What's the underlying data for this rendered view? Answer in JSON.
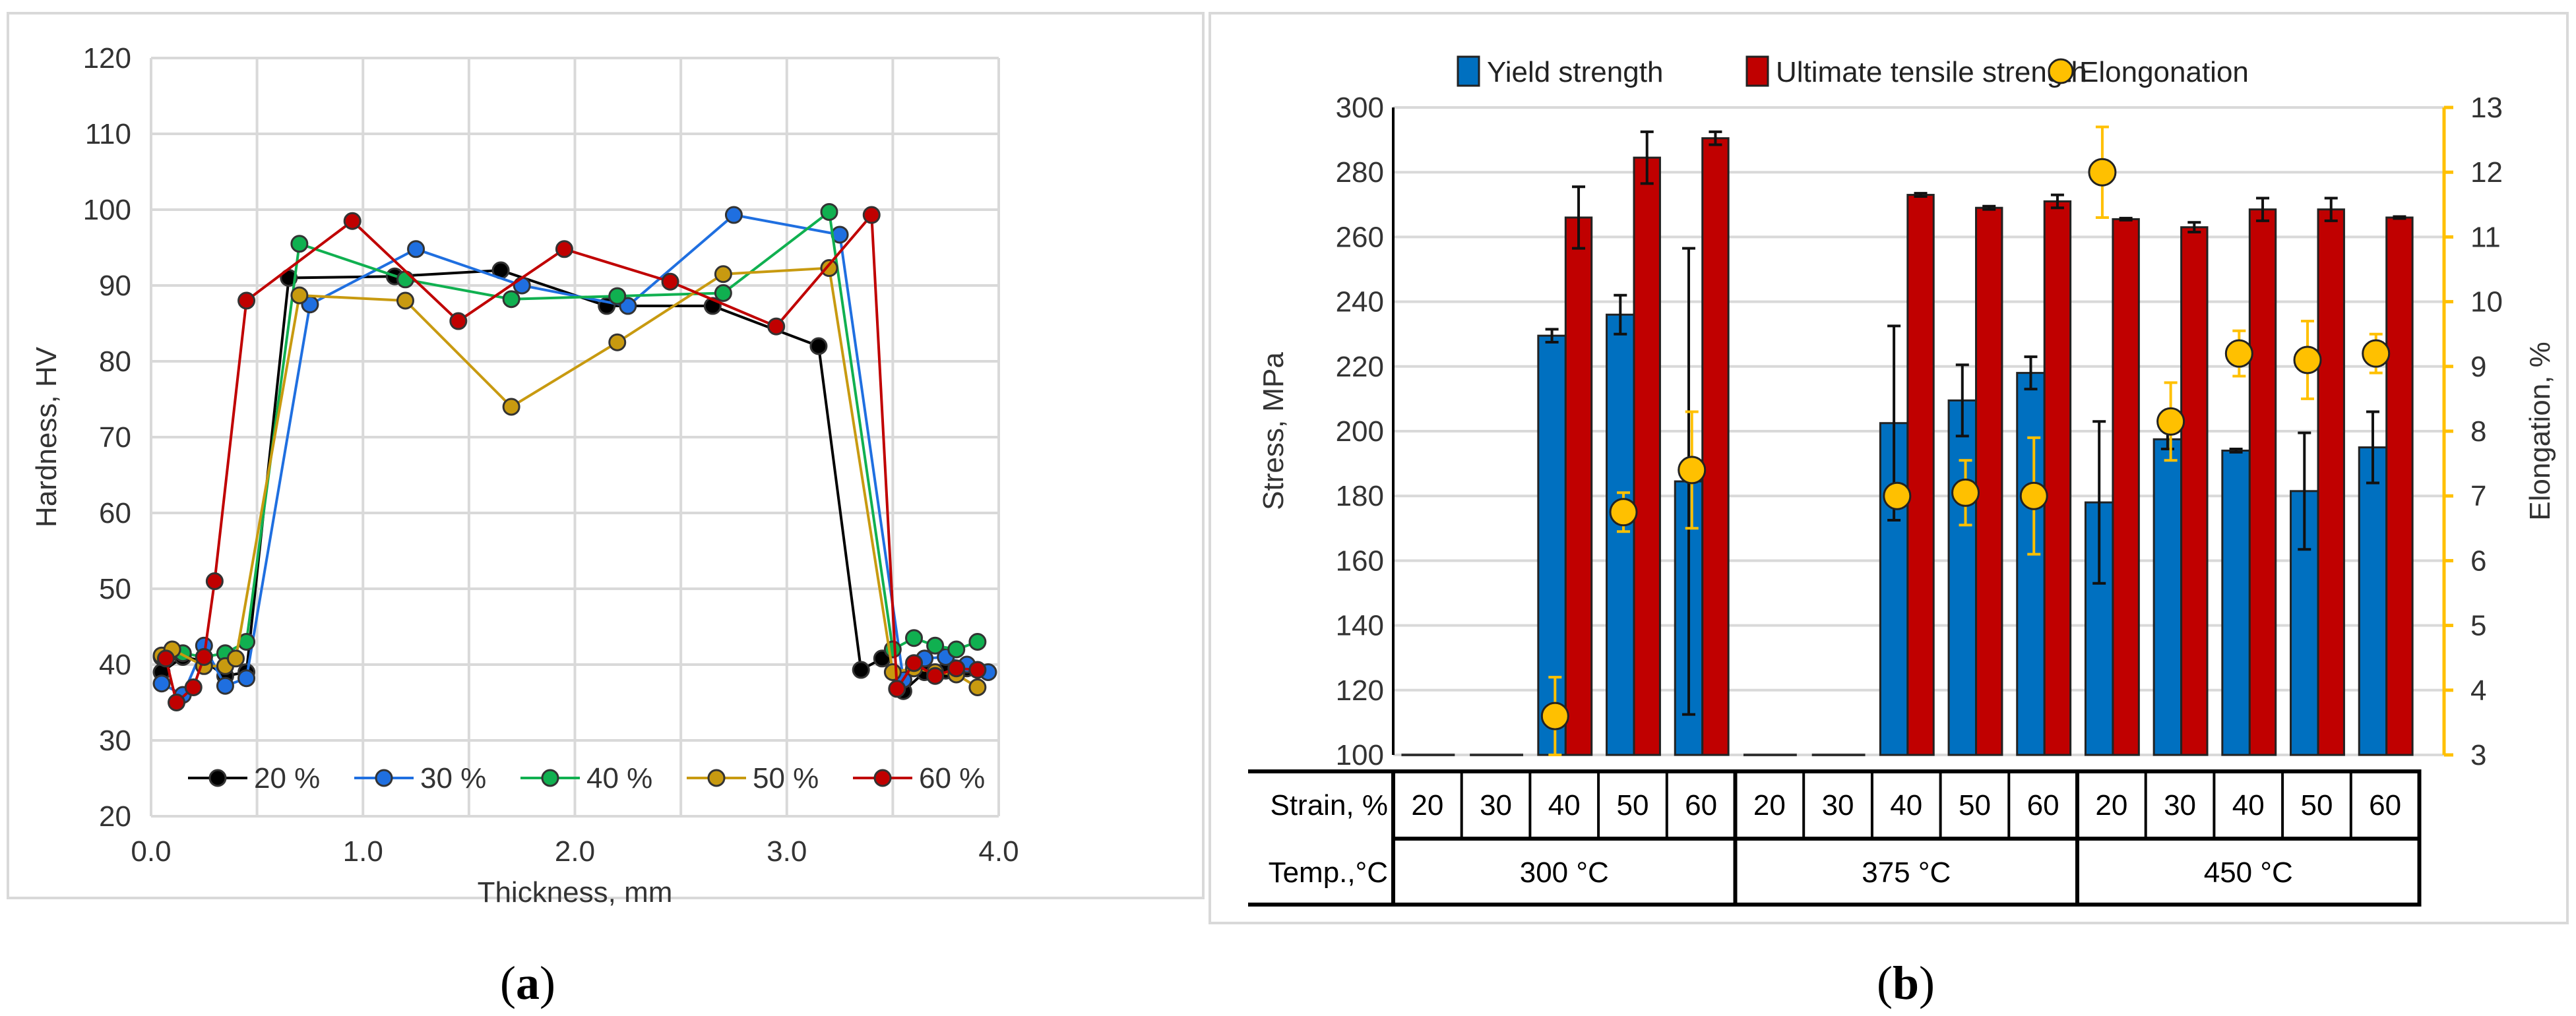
{
  "chart_data": [
    {
      "type": "line",
      "panel_label": "a",
      "xlabel": "Thickness, mm",
      "ylabel": "Hardness, HV",
      "xlim": [
        0,
        4
      ],
      "ylim": [
        20,
        120
      ],
      "xticks": [
        "0.0",
        "1.0",
        "2.0",
        "3.0",
        "4.0"
      ],
      "yticks": [
        "20",
        "30",
        "40",
        "50",
        "60",
        "70",
        "80",
        "90",
        "100",
        "110",
        "120"
      ],
      "grid": true,
      "legend": "bottom-inside",
      "series": [
        {
          "name": "20 %",
          "color": "#000000",
          "x": [
            0.05,
            0.15,
            0.25,
            0.35,
            0.45,
            0.65,
            1.15,
            1.65,
            2.15,
            2.65,
            3.15,
            3.35,
            3.45,
            3.55,
            3.65,
            3.75,
            3.85
          ],
          "y": [
            39,
            41,
            40.5,
            38.5,
            39,
            91,
            91.2,
            92,
            87.3,
            87.3,
            82,
            39.3,
            40.8,
            36.5,
            39,
            39.2,
            39.5
          ]
        },
        {
          "name": "30 %",
          "color": "#1f6fe0",
          "x": [
            0.05,
            0.15,
            0.25,
            0.35,
            0.45,
            0.75,
            1.25,
            1.75,
            2.25,
            2.75,
            3.25,
            3.55,
            3.65,
            3.75,
            3.85,
            3.95
          ],
          "y": [
            37.5,
            36,
            42.5,
            37.2,
            38.2,
            87.5,
            94.8,
            90,
            87.3,
            99.3,
            96.7,
            38,
            40.8,
            41,
            40,
            39
          ]
        },
        {
          "name": "40 %",
          "color": "#10b050",
          "x": [
            0.05,
            0.15,
            0.25,
            0.35,
            0.45,
            0.7,
            1.2,
            1.7,
            2.2,
            2.7,
            3.2,
            3.5,
            3.6,
            3.7,
            3.8,
            3.9
          ],
          "y": [
            41,
            41.5,
            41,
            41.5,
            43,
            95.5,
            90.8,
            88.2,
            88.6,
            89,
            99.7,
            42,
            43.5,
            42.5,
            42,
            43
          ]
        },
        {
          "name": "50 %",
          "color": "#c89a10",
          "x": [
            0.05,
            0.1,
            0.25,
            0.35,
            0.4,
            0.7,
            1.2,
            1.7,
            2.2,
            2.7,
            3.2,
            3.5,
            3.6,
            3.7,
            3.8,
            3.9
          ],
          "y": [
            41.2,
            42,
            39.8,
            39.8,
            40.8,
            88.7,
            88,
            74,
            82.5,
            91.5,
            92.3,
            39,
            39.5,
            39,
            38.7,
            37
          ]
        },
        {
          "name": "60 %",
          "color": "#c00000",
          "x": [
            0.07,
            0.12,
            0.2,
            0.25,
            0.3,
            0.45,
            0.95,
            1.45,
            1.95,
            2.45,
            2.95,
            3.4,
            3.52,
            3.6,
            3.7,
            3.8,
            3.9
          ],
          "y": [
            40.8,
            35,
            37,
            41,
            51,
            88,
            98.5,
            85.3,
            94.8,
            90.5,
            84.6,
            99.3,
            36.8,
            40.2,
            38.5,
            39.5,
            39.3
          ]
        }
      ]
    },
    {
      "type": "bar",
      "panel_label": "b",
      "ylabel": "Stress, MPa",
      "y2label": "Elongation, %",
      "ylim": [
        100,
        300
      ],
      "y2lim": [
        3,
        13
      ],
      "yticks": [
        "100",
        "120",
        "140",
        "160",
        "180",
        "200",
        "220",
        "240",
        "260",
        "280",
        "300"
      ],
      "y2ticks": [
        "3",
        "4",
        "5",
        "6",
        "7",
        "8",
        "9",
        "10",
        "11",
        "12",
        "13"
      ],
      "grid": true,
      "legend": "top",
      "table": {
        "row1_label": "Strain, %",
        "row2_label": "Temp.,°C",
        "strain": [
          "20",
          "30",
          "40",
          "50",
          "60",
          "20",
          "30",
          "40",
          "50",
          "60",
          "20",
          "30",
          "40",
          "50",
          "60"
        ],
        "temps": [
          "300 °C",
          "375 °C",
          "450 °C"
        ]
      },
      "series": [
        {
          "name": "Yield strength",
          "color": "#0070c0",
          "axis": "left",
          "values": [
            null,
            null,
            229.5,
            236,
            184.5,
            null,
            null,
            202.5,
            209.5,
            218,
            178,
            197.5,
            194,
            181.5,
            195
          ],
          "errors": [
            0,
            0,
            2,
            6,
            72,
            0,
            0,
            30,
            11,
            5,
            25,
            3,
            0.5,
            18,
            11
          ]
        },
        {
          "name": "Ultimate tensile strength",
          "color": "#c00000",
          "axis": "left",
          "values": [
            null,
            null,
            266,
            284.5,
            290.5,
            null,
            null,
            273,
            269,
            271,
            265.5,
            263,
            268.5,
            268.5,
            266
          ],
          "errors": [
            0,
            0,
            9.5,
            8,
            2,
            0,
            0,
            0.5,
            0.5,
            2,
            0.3,
            1.5,
            3.5,
            3.5,
            0.3
          ]
        },
        {
          "name": "Elongonation",
          "color": "#ffc000",
          "axis": "right",
          "values": [
            null,
            null,
            3.6,
            6.75,
            7.4,
            null,
            null,
            7,
            7.05,
            7,
            12,
            8.15,
            9.2,
            9.1,
            9.2
          ],
          "errors": [
            0,
            0,
            0.6,
            0.3,
            0.9,
            0,
            0,
            0,
            0.5,
            0.9,
            0.7,
            0.6,
            0.35,
            0.6,
            0.3
          ]
        }
      ]
    }
  ]
}
